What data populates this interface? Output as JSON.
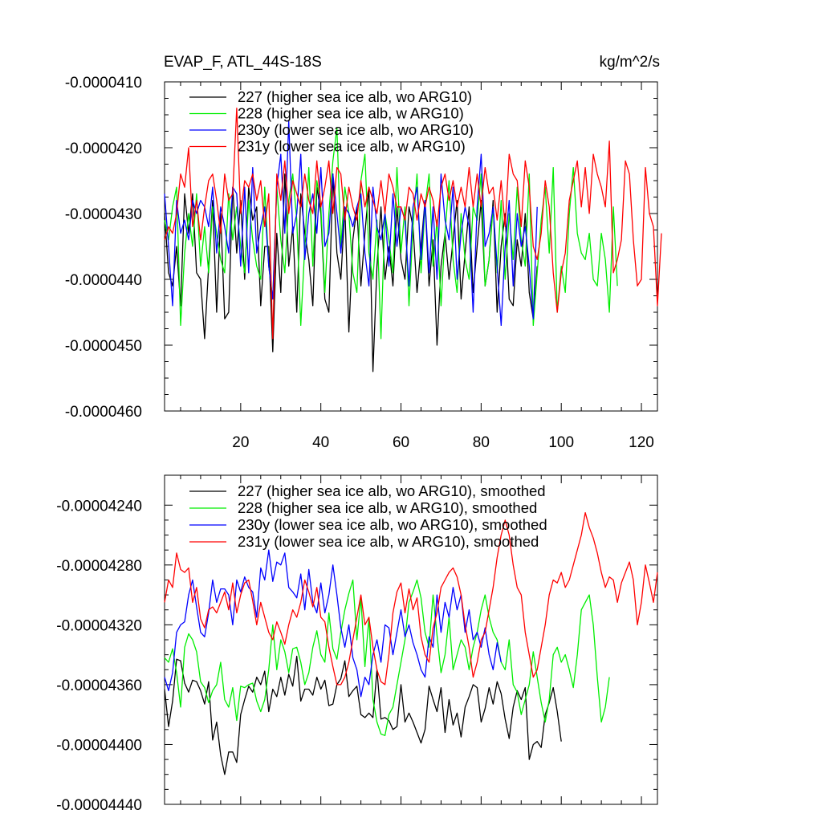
{
  "chart_data": [
    {
      "type": "line",
      "title": "EVAP_F, ATL_44S-18S",
      "unit_label": "kg/m^2/s",
      "xlim": [
        1,
        124
      ],
      "ylim": [
        -4.6e-05,
        -4.1e-05
      ],
      "y_ticks": [
        -4.1e-05,
        -4.2e-05,
        -4.3e-05,
        -4.4e-05,
        -4.5e-05,
        -4.6e-05
      ],
      "y_tick_labels": [
        "-0.0000410",
        "-0.0000420",
        "-0.0000430",
        "-0.0000440",
        "-0.0000450",
        "-0.0000460"
      ],
      "x_ticks": [
        20,
        40,
        60,
        80,
        100,
        120
      ],
      "x_tick_labels": [
        "20",
        "40",
        "60",
        "80",
        "100",
        "120"
      ],
      "legend_position": "top-left",
      "series": [
        {
          "name": "227 (higher sea ice alb, wo ARG10)",
          "color": "#000000",
          "values": [
            -43.0,
            -43.9,
            -44.1,
            -43.5,
            -44.4,
            -42.7,
            -43.3,
            -42.7,
            -43.9,
            -44.0,
            -44.9,
            -43.8,
            -42.8,
            -44.5,
            -43.0,
            -44.6,
            -44.5,
            -42.6,
            -43.6,
            -42.8,
            -44.0,
            -42.6,
            -43.1,
            -42.9,
            -44.4,
            -43.5,
            -43.5,
            -45.1,
            -43.3,
            -44.2,
            -42.4,
            -43.8,
            -43.2,
            -44.5,
            -42.7,
            -43.3,
            -43.7,
            -44.4,
            -42.6,
            -43.0,
            -44.3,
            -44.5,
            -42.4,
            -43.6,
            -44.0,
            -42.9,
            -44.8,
            -43.4,
            -42.9,
            -44.1,
            -43.3,
            -42.6,
            -45.4,
            -43.8,
            -42.9,
            -44.0,
            -43.5,
            -44.1,
            -42.9,
            -43.7,
            -44.0,
            -42.9,
            -43.2,
            -44.2,
            -43.5,
            -42.8,
            -44.1,
            -43.4,
            -45.0,
            -43.8,
            -43.3,
            -44.0,
            -43.4,
            -42.8,
            -44.3,
            -43.6,
            -42.9,
            -44.2,
            -43.5,
            -42.8,
            -44.1,
            -43.7,
            -42.8,
            -44.5,
            -43.5,
            -43.0,
            -44.3,
            -44.4,
            -43.4,
            -43.8,
            -43.0,
            -44.2,
            -44.6,
            -43.8
          ]
        },
        {
          "name": "228 (higher sea ice alb, w ARG10)",
          "color": "#00ee00",
          "values": [
            -43.1,
            -43.4,
            -42.9,
            -42.6,
            -44.7,
            -43.6,
            -43.0,
            -43.5,
            -42.7,
            -43.8,
            -43.2,
            -43.9,
            -42.9,
            -43.3,
            -43.7,
            -43.9,
            -42.7,
            -43.4,
            -42.9,
            -43.5,
            -43.9,
            -42.8,
            -43.4,
            -43.8,
            -44.0,
            -42.6,
            -43.8,
            -44.3,
            -42.6,
            -43.4,
            -43.9,
            -42.8,
            -42.4,
            -43.1,
            -44.7,
            -43.5,
            -42.3,
            -43.8,
            -42.5,
            -42.9,
            -44.2,
            -43.0,
            -42.2,
            -41.7,
            -43.5,
            -42.6,
            -43.0,
            -43.9,
            -44.2,
            -42.5,
            -42.1,
            -43.6,
            -44.0,
            -43.1,
            -44.9,
            -43.0,
            -43.4,
            -43.9,
            -42.3,
            -43.6,
            -42.9,
            -44.4,
            -43.2,
            -42.4,
            -43.9,
            -42.9,
            -42.4,
            -43.8,
            -43.1,
            -44.4,
            -43.3,
            -42.5,
            -43.7,
            -44.2,
            -43.0,
            -43.7,
            -44.0,
            -42.9,
            -43.1,
            -42.4,
            -44.1,
            -43.7,
            -42.9,
            -43.9,
            -42.8,
            -44.0,
            -43.0,
            -43.7,
            -42.6,
            -43.4,
            -43.8,
            -42.4,
            -44.7,
            -43.9,
            -43.1,
            -42.6,
            -43.6,
            -42.3,
            -44.5,
            -43.8,
            -44.2,
            -43.0,
            -42.3,
            -43.3,
            -43.6,
            -43.7,
            -43.3,
            -44.0,
            -44.1,
            -43.3,
            -43.7,
            -44.5,
            -42.9,
            -44.1
          ]
        },
        {
          "name": "230y (lower sea ice alb, wo ARG10)",
          "color": "#0000ff",
          "values": [
            -42.7,
            -43.5,
            -44.4,
            -42.8,
            -43.3,
            -43.1,
            -43.4,
            -42.8,
            -43.0,
            -42.8,
            -42.9,
            -43.2,
            -42.6,
            -43.6,
            -42.9,
            -43.2,
            -43.6,
            -42.6,
            -42.7,
            -43.8,
            -42.6,
            -43.9,
            -42.3,
            -43.6,
            -43.2,
            -42.9,
            -43.8,
            -44.3,
            -42.6,
            -42.1,
            -43.3,
            -41.6,
            -43.3,
            -43.0,
            -42.1,
            -43.7,
            -43.0,
            -42.7,
            -43.3,
            -42.3,
            -43.5,
            -43.3,
            -42.4,
            -43.0,
            -43.6,
            -42.9,
            -43.0,
            -43.2,
            -42.9,
            -42.7,
            -43.6,
            -44.1,
            -42.6,
            -43.2,
            -43.4,
            -43.0,
            -43.8,
            -42.7,
            -43.5,
            -42.9,
            -43.1,
            -44.1,
            -42.9,
            -42.6,
            -43.7,
            -42.8,
            -43.9,
            -42.9,
            -44.0,
            -42.4,
            -43.1,
            -43.4,
            -42.6,
            -44.0,
            -43.3,
            -42.9,
            -43.2,
            -44.5,
            -42.9,
            -42.1,
            -43.5,
            -43.3,
            -42.9,
            -43.8,
            -44.7,
            -43.5,
            -42.8,
            -44.1,
            -43.0,
            -43.5,
            -43.2,
            -43.8,
            -44.6,
            -42.9
          ]
        },
        {
          "name": "231y (lower sea ice alb, w ARG10)",
          "color": "#ff0000",
          "values": [
            -43.4,
            -43.2,
            -43.3,
            -43.0,
            -42.4,
            -42.6,
            -42.0,
            -43.2,
            -42.8,
            -43.4,
            -42.9,
            -42.5,
            -42.4,
            -42.8,
            -43.3,
            -42.4,
            -42.8,
            -42.7,
            -41.4,
            -43.0,
            -42.5,
            -42.6,
            -42.4,
            -42.8,
            -42.5,
            -43.2,
            -42.7,
            -44.9,
            -42.4,
            -42.8,
            -42.2,
            -43.0,
            -42.5,
            -42.7,
            -42.9,
            -42.4,
            -42.8,
            -43.0,
            -42.2,
            -42.9,
            -42.6,
            -42.2,
            -43.0,
            -42.3,
            -42.4,
            -43.1,
            -42.6,
            -42.9,
            -43.1,
            -42.5,
            -42.9,
            -42.6,
            -42.8,
            -43.0,
            -42.5,
            -43.0,
            -42.4,
            -42.6,
            -42.9,
            -42.9,
            -43.1,
            -42.6,
            -42.7,
            -43.1,
            -42.7,
            -42.9,
            -42.6,
            -42.8,
            -43.2,
            -42.6,
            -42.4,
            -42.8,
            -42.5,
            -42.9,
            -42.6,
            -42.9,
            -42.3,
            -42.9,
            -42.4,
            -42.9,
            -42.3,
            -42.7,
            -42.6,
            -43.1,
            -42.5,
            -43.2,
            -42.1,
            -42.4,
            -42.5,
            -43.2,
            -42.2,
            -42.6,
            -43.5,
            -43.7,
            -43.3,
            -42.5,
            -42.9,
            -43.9,
            -44.5,
            -43.9,
            -43.6,
            -42.8,
            -42.5,
            -42.2,
            -42.9,
            -42.3,
            -43.0,
            -42.1,
            -42.4,
            -42.6,
            -42.9,
            -41.9,
            -43.9,
            -43.7,
            -43.4,
            -42.2,
            -42.4,
            -43.4,
            -44.1,
            -44.0,
            -42.3,
            -43.0,
            -43.2,
            -44.4,
            -43.3
          ]
        }
      ]
    },
    {
      "type": "line",
      "ylim": [
        -4.44e-05,
        -4.22e-05
      ],
      "y_ticks": [
        -4.24e-05,
        -4.28e-05,
        -4.32e-05,
        -4.36e-05,
        -4.4e-05,
        -4.44e-05
      ],
      "y_tick_labels": [
        "-0.00004240",
        "-0.00004280",
        "-0.00004320",
        "-0.00004360",
        "-0.00004400",
        "-0.00004440"
      ],
      "legend_position": "top-left",
      "series": [
        {
          "name": "227 (higher sea ice alb, wo ARG10), smoothed",
          "color": "#000000",
          "values": [
            -43.63,
            -43.88,
            -43.71,
            -43.43,
            -43.44,
            -43.59,
            -43.65,
            -43.57,
            -43.58,
            -43.64,
            -43.73,
            -43.58,
            -43.97,
            -43.85,
            -44.07,
            -44.2,
            -44.05,
            -44.05,
            -44.12,
            -43.8,
            -43.7,
            -43.61,
            -43.65,
            -43.55,
            -43.6,
            -43.51,
            -43.78,
            -43.63,
            -43.68,
            -43.55,
            -43.67,
            -43.53,
            -43.61,
            -43.41,
            -43.71,
            -43.63,
            -43.63,
            -43.67,
            -43.55,
            -43.63,
            -43.57,
            -43.74,
            -43.73,
            -43.6,
            -43.56,
            -43.44,
            -43.68,
            -43.64,
            -43.61,
            -43.8,
            -43.82,
            -43.79,
            -43.82,
            -43.5,
            -43.83,
            -43.82,
            -43.84,
            -43.9,
            -43.88,
            -43.6,
            -43.85,
            -43.79,
            -43.85,
            -43.92,
            -43.99,
            -43.9,
            -43.61,
            -43.7,
            -43.78,
            -43.62,
            -43.92,
            -43.7,
            -43.87,
            -43.79,
            -43.95,
            -43.75,
            -43.68,
            -43.6,
            -43.62,
            -43.85,
            -43.76,
            -43.62,
            -43.73,
            -43.58,
            -43.66,
            -43.83,
            -43.96,
            -43.75,
            -43.64,
            -43.7,
            -43.62,
            -44.1,
            -44.0,
            -43.98,
            -44.02,
            -43.8,
            -43.72,
            -43.62,
            -43.78,
            -43.98
          ]
        },
        {
          "name": "228 (higher sea ice alb, w ARG10), smoothed",
          "color": "#00ee00",
          "values": [
            -43.42,
            -43.45,
            -43.36,
            -43.52,
            -43.75,
            -43.35,
            -43.26,
            -43.3,
            -43.38,
            -43.58,
            -43.62,
            -43.72,
            -43.64,
            -43.6,
            -43.45,
            -43.7,
            -43.75,
            -43.62,
            -43.84,
            -43.61,
            -43.62,
            -43.6,
            -43.59,
            -43.71,
            -43.78,
            -43.7,
            -43.5,
            -43.2,
            -43.5,
            -43.3,
            -43.38,
            -43.52,
            -43.36,
            -43.35,
            -43.45,
            -43.6,
            -43.52,
            -43.35,
            -43.24,
            -43.4,
            -43.45,
            -43.12,
            -43.36,
            -43.43,
            -43.25,
            -43.1,
            -42.99,
            -42.9,
            -43.3,
            -43.02,
            -43.48,
            -43.15,
            -43.7,
            -43.85,
            -43.93,
            -43.94,
            -43.8,
            -43.75,
            -43.6,
            -43.45,
            -43.3,
            -43.05,
            -42.98,
            -42.9,
            -43.02,
            -43.25,
            -43.35,
            -43.0,
            -43.27,
            -43.52,
            -43.4,
            -43.15,
            -43.5,
            -43.4,
            -43.3,
            -43.35,
            -43.5,
            -43.35,
            -43.25,
            -43.1,
            -43.0,
            -43.15,
            -43.25,
            -43.3,
            -43.45,
            -43.5,
            -43.3,
            -43.6,
            -43.65,
            -43.8,
            -43.7,
            -43.6,
            -43.38,
            -43.55,
            -43.72,
            -43.85,
            -43.7,
            -43.4,
            -43.35,
            -43.45,
            -43.4,
            -43.5,
            -43.62,
            -43.4,
            -43.1,
            -43.05,
            -43.0,
            -43.2,
            -43.55,
            -43.85,
            -43.75,
            -43.55
          ]
        },
        {
          "name": "230y (lower sea ice alb, wo ARG10), smoothed",
          "color": "#0000ff",
          "values": [
            -43.55,
            -43.64,
            -43.52,
            -43.25,
            -43.2,
            -43.18,
            -43.0,
            -42.9,
            -43.08,
            -43.25,
            -43.28,
            -43.12,
            -42.9,
            -43.05,
            -42.96,
            -42.96,
            -43.0,
            -43.2,
            -42.9,
            -42.98,
            -42.88,
            -42.95,
            -42.98,
            -43.15,
            -42.82,
            -42.9,
            -42.7,
            -42.91,
            -42.78,
            -42.8,
            -42.72,
            -42.95,
            -42.98,
            -43.02,
            -42.86,
            -43.1,
            -42.83,
            -43.05,
            -43.12,
            -42.92,
            -43.12,
            -43.0,
            -42.8,
            -43.0,
            -43.22,
            -43.35,
            -43.2,
            -43.42,
            -43.5,
            -43.68,
            -43.55,
            -43.6,
            -43.4,
            -43.3,
            -43.45,
            -43.2,
            -43.22,
            -43.4,
            -43.25,
            -43.1,
            -43.28,
            -43.2,
            -43.32,
            -43.4,
            -43.5,
            -43.55,
            -43.28,
            -43.35,
            -43.0,
            -43.25,
            -43.05,
            -43.15,
            -42.95,
            -43.1,
            -43.0,
            -43.25,
            -43.1,
            -43.3,
            -43.25,
            -43.35,
            -43.22,
            -43.4,
            -43.5,
            -43.32,
            -43.45
          ]
        },
        {
          "name": "231y (lower sea ice alb, w ARG10), smoothed",
          "color": "#ff0000",
          "values": [
            -43.05,
            -42.9,
            -42.95,
            -42.72,
            -42.83,
            -42.85,
            -42.82,
            -43.05,
            -42.95,
            -43.16,
            -43.22,
            -43.1,
            -43.08,
            -43.12,
            -43.05,
            -42.98,
            -43.1,
            -42.92,
            -43.12,
            -43.0,
            -42.92,
            -42.9,
            -43.04,
            -43.2,
            -43.05,
            -43.15,
            -43.25,
            -43.3,
            -43.18,
            -43.25,
            -43.33,
            -43.2,
            -43.1,
            -43.15,
            -43.05,
            -42.9,
            -42.98,
            -43.08,
            -42.95,
            -43.15,
            -43.18,
            -43.35,
            -43.48,
            -43.6,
            -43.6,
            -43.55,
            -43.45,
            -43.3,
            -43.15,
            -43.0,
            -43.2,
            -43.15,
            -43.35,
            -43.5,
            -43.58,
            -43.6,
            -43.4,
            -43.12,
            -42.98,
            -42.92,
            -43.12,
            -42.96,
            -43.1,
            -43.02,
            -43.28,
            -43.4,
            -43.45,
            -43.22,
            -43.12,
            -42.95,
            -42.9,
            -42.85,
            -42.82,
            -42.88,
            -43.0,
            -43.2,
            -43.35,
            -43.55,
            -43.45,
            -43.3,
            -43.25,
            -43.1,
            -42.95,
            -42.75,
            -42.6,
            -42.5,
            -42.6,
            -42.8,
            -42.95,
            -43.0,
            -43.25,
            -43.4,
            -43.55,
            -43.5,
            -43.35,
            -43.2,
            -43.0,
            -42.9,
            -42.92,
            -42.85,
            -42.95,
            -42.9,
            -42.8,
            -42.7,
            -42.6,
            -42.45,
            -42.55,
            -42.62,
            -42.72,
            -42.85,
            -42.95,
            -42.88,
            -42.9,
            -43.05,
            -42.92,
            -42.85,
            -42.78,
            -42.9,
            -43.2,
            -43.05,
            -42.8,
            -42.92,
            -43.05,
            -42.85
          ]
        }
      ]
    }
  ]
}
